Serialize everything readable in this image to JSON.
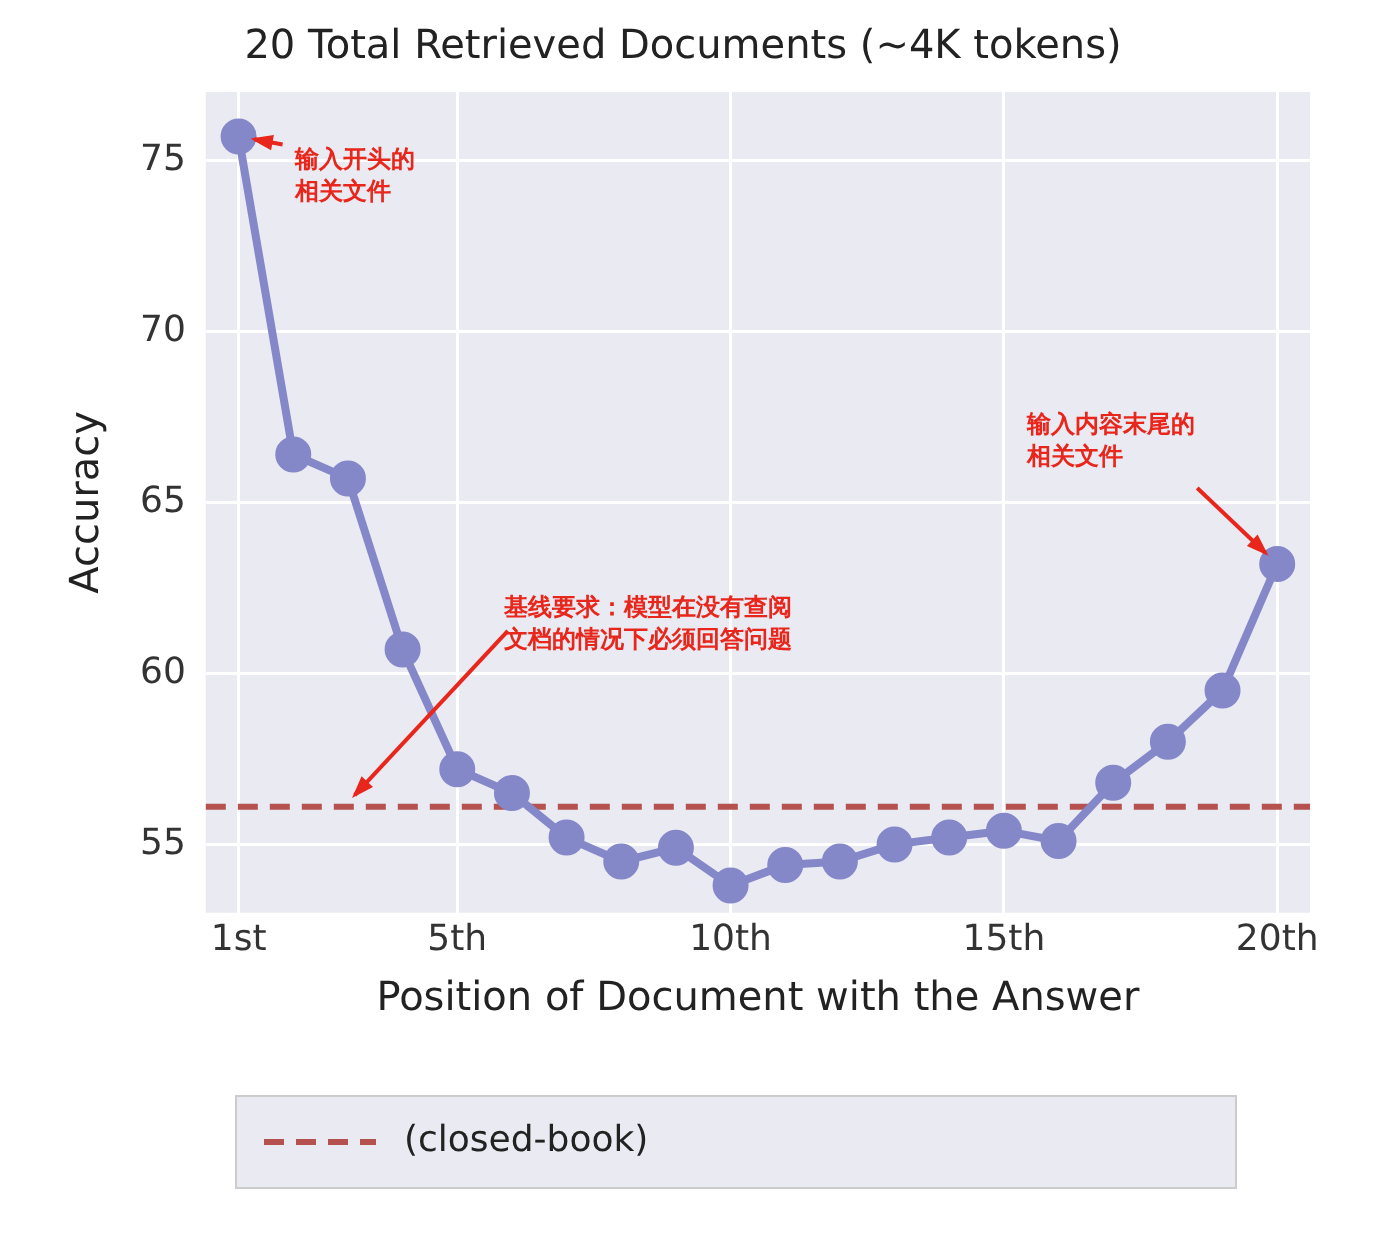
{
  "chart_data": {
    "type": "line",
    "title": "20 Total Retrieved Documents (~4K tokens)",
    "xlabel": "Position of Document with the Answer",
    "ylabel": "Accuracy",
    "x": [
      1,
      2,
      3,
      4,
      5,
      6,
      7,
      8,
      9,
      10,
      11,
      12,
      13,
      14,
      15,
      16,
      17,
      18,
      19,
      20
    ],
    "series": [
      {
        "color": "#8487c8",
        "values": [
          75.7,
          66.4,
          65.7,
          60.7,
          57.2,
          56.5,
          55.2,
          54.5,
          54.9,
          53.8,
          54.4,
          54.5,
          55.0,
          55.2,
          55.4,
          55.1,
          56.8,
          58.0,
          59.5,
          63.2
        ]
      }
    ],
    "xlim": [
      0.4,
      20.6
    ],
    "xticks": [
      {
        "value": 1,
        "label": "1st"
      },
      {
        "value": 5,
        "label": "5th"
      },
      {
        "value": 10,
        "label": "10th"
      },
      {
        "value": 15,
        "label": "15th"
      },
      {
        "value": 20,
        "label": "20th"
      }
    ],
    "ylim": [
      53,
      77
    ],
    "yticks": [
      55,
      60,
      65,
      70,
      75
    ],
    "ref_lines": [
      {
        "axis": "y",
        "value": 56.1,
        "label": "(closed-book)",
        "color": "#b5514f",
        "line_style": "dashed"
      }
    ],
    "annotations": [
      {
        "text": "输入开头的相关文件",
        "x": 1,
        "y": 75.7
      },
      {
        "text": "输入内容末尾的相关文件",
        "x": 20,
        "y": 63.2
      },
      "基线要求：模型在没有查阅文档的情况下必须回答问题"
    ],
    "grid": true,
    "marker": "circle",
    "line_style": "solid"
  }
}
